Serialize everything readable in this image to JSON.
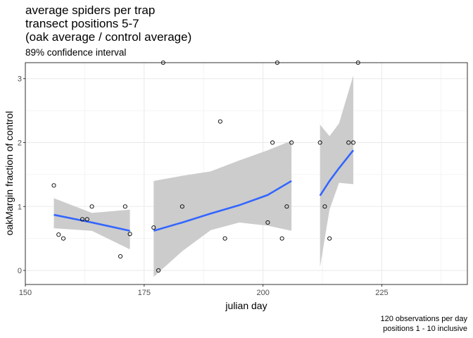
{
  "chart_data": {
    "type": "scatter",
    "title_lines": [
      "average spiders per trap",
      "transect positions 5-7",
      "(oak average / control average)"
    ],
    "subtitle": "89% confidence interval",
    "xlabel": "julian day",
    "ylabel": "oakMargin fraction of control",
    "caption_lines": [
      "120 observations per day",
      "positions 1 - 10 inclusive"
    ],
    "xlim": [
      150,
      243
    ],
    "ylim": [
      -0.22,
      3.25
    ],
    "xticks": [
      150,
      175,
      200,
      225
    ],
    "yticks": [
      0,
      1,
      2,
      3
    ],
    "grid": true,
    "points": [
      {
        "x": 156,
        "y": 1.33
      },
      {
        "x": 157,
        "y": 0.56
      },
      {
        "x": 158,
        "y": 0.5
      },
      {
        "x": 162,
        "y": 0.8
      },
      {
        "x": 163,
        "y": 0.8
      },
      {
        "x": 164,
        "y": 1.0
      },
      {
        "x": 170,
        "y": 0.22
      },
      {
        "x": 171,
        "y": 1.0
      },
      {
        "x": 172,
        "y": 0.57
      },
      {
        "x": 177,
        "y": 0.67
      },
      {
        "x": 178,
        "y": 0.0
      },
      {
        "x": 179,
        "y": 3.25
      },
      {
        "x": 183,
        "y": 1.0
      },
      {
        "x": 191,
        "y": 2.33
      },
      {
        "x": 192,
        "y": 0.5
      },
      {
        "x": 201,
        "y": 0.75
      },
      {
        "x": 202,
        "y": 2.0
      },
      {
        "x": 203,
        "y": 3.25
      },
      {
        "x": 204,
        "y": 0.5
      },
      {
        "x": 205,
        "y": 1.0
      },
      {
        "x": 206,
        "y": 2.0
      },
      {
        "x": 212,
        "y": 2.0
      },
      {
        "x": 213,
        "y": 1.0
      },
      {
        "x": 214,
        "y": 0.5
      },
      {
        "x": 218,
        "y": 2.0
      },
      {
        "x": 219,
        "y": 2.0
      },
      {
        "x": 220,
        "y": 3.25
      }
    ],
    "fits": [
      {
        "x": [
          156,
          164,
          172
        ],
        "y": [
          0.87,
          0.75,
          0.62
        ],
        "lower": [
          0.66,
          0.62,
          0.33
        ],
        "upper": [
          1.13,
          0.9,
          0.95
        ]
      },
      {
        "x": [
          177,
          183,
          189,
          195,
          201,
          206
        ],
        "y": [
          0.62,
          0.75,
          0.89,
          1.02,
          1.18,
          1.4
        ],
        "lower": [
          -0.1,
          0.3,
          0.63,
          0.75,
          0.7,
          0.62
        ],
        "upper": [
          1.4,
          1.48,
          1.55,
          1.72,
          1.88,
          2.03
        ]
      },
      {
        "x": [
          212,
          214,
          216,
          219
        ],
        "y": [
          1.17,
          1.4,
          1.6,
          1.88
        ],
        "lower": [
          0.05,
          0.95,
          1.37,
          1.35
        ],
        "upper": [
          2.28,
          2.1,
          2.3,
          3.05
        ]
      }
    ],
    "colors": {
      "line": "#3366ff",
      "ribbon": "#cccccc",
      "grid": "#ebebeb",
      "panel_border": "#333333",
      "point": "#000000"
    }
  }
}
